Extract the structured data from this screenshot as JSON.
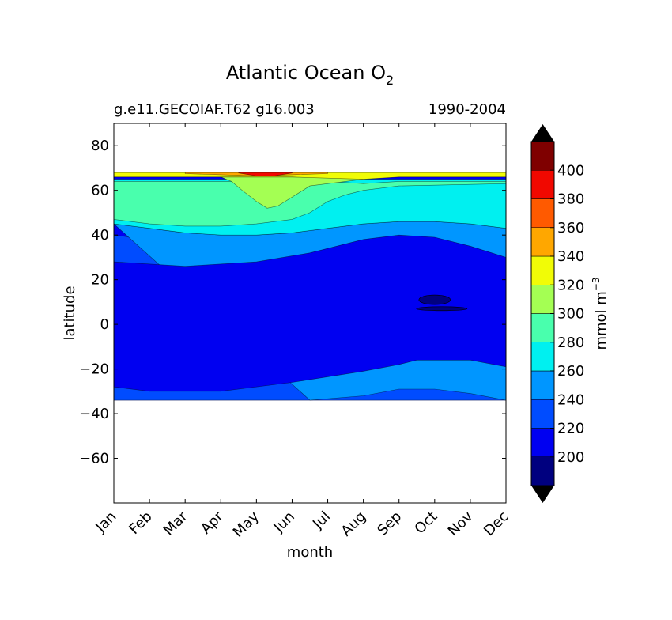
{
  "chart_data": {
    "type": "contourf",
    "title_main": "Atlantic Ocean O",
    "title_sub": "2",
    "subtitle_left": "g.e11.GECOIAF.T62 g16.003",
    "subtitle_right": "1990-2004",
    "xlabel": "month",
    "ylabel": "latitude",
    "x_categories": [
      "Jan",
      "Feb",
      "Mar",
      "Apr",
      "May",
      "Jun",
      "Jul",
      "Aug",
      "Sep",
      "Oct",
      "Nov",
      "Dec"
    ],
    "xlim": [
      0,
      11
    ],
    "ylim": [
      -80,
      90
    ],
    "yticks": [
      80,
      60,
      40,
      20,
      0,
      -20,
      -40,
      -60
    ],
    "ytick_labels": [
      "80",
      "60",
      "40",
      "20",
      "0",
      "−20",
      "−40",
      "−60"
    ],
    "data_lat_range": [
      -34,
      68
    ],
    "colorbar": {
      "label": "mmol m",
      "label_exp": "−3",
      "levels": [
        180,
        200,
        220,
        240,
        260,
        280,
        300,
        320,
        340,
        360,
        380,
        400,
        420
      ],
      "tick_labels": [
        "200",
        "220",
        "240",
        "260",
        "280",
        "300",
        "320",
        "340",
        "360",
        "380",
        "400"
      ],
      "tick_values": [
        200,
        220,
        240,
        260,
        280,
        300,
        320,
        340,
        360,
        380,
        400
      ],
      "colors": [
        "#00007f",
        "#0000f1",
        "#004cff",
        "#0096ff",
        "#00f0f0",
        "#49ffad",
        "#a4ff53",
        "#f1fc06",
        "#ffa700",
        "#ff5a00",
        "#f10800",
        "#7f0000"
      ],
      "extend_low_color": "#000000",
      "extend_high_color": "#000000"
    },
    "contour_bands": [
      {
        "level": 220,
        "color": "#0000f1",
        "top": [
          [
            0,
            28
          ],
          [
            2,
            26
          ],
          [
            4,
            28
          ],
          [
            5.5,
            32
          ],
          [
            7,
            38
          ],
          [
            8,
            40
          ],
          [
            9,
            39
          ],
          [
            10,
            35
          ],
          [
            11,
            30
          ]
        ],
        "bottom": [
          [
            0,
            -28
          ],
          [
            1,
            -30
          ],
          [
            3,
            -30
          ],
          [
            5,
            -26
          ],
          [
            7,
            -21
          ],
          [
            8,
            -18
          ],
          [
            8.5,
            -16
          ],
          [
            10,
            -16
          ],
          [
            11,
            -19
          ]
        ]
      },
      {
        "level": 240,
        "color": "#004cff",
        "top": [
          [
            0,
            40
          ],
          [
            1,
            38
          ],
          [
            2,
            34
          ],
          [
            3,
            33
          ],
          [
            4,
            35
          ],
          [
            5,
            36
          ],
          [
            6,
            39
          ],
          [
            7,
            42
          ],
          [
            8,
            44
          ],
          [
            9,
            44
          ],
          [
            10,
            43
          ],
          [
            11,
            40
          ]
        ],
        "bottom": [
          [
            0,
            -34
          ],
          [
            11,
            -34
          ]
        ]
      },
      {
        "level": 260,
        "color": "#0096ff",
        "top": [
          [
            0,
            45
          ],
          [
            1,
            43
          ],
          [
            2,
            41
          ],
          [
            3,
            40
          ],
          [
            4,
            40
          ],
          [
            5,
            41
          ],
          [
            6,
            43
          ],
          [
            7,
            45
          ],
          [
            8,
            46
          ],
          [
            9,
            46
          ],
          [
            10,
            45
          ],
          [
            11,
            43
          ]
        ],
        "bottom": [
          [
            5.5,
            -34
          ],
          [
            7,
            -32
          ],
          [
            8,
            -29
          ],
          [
            9,
            -29
          ],
          [
            10,
            -31
          ],
          [
            11,
            -34
          ]
        ]
      },
      {
        "level": 280,
        "color": "#00f0f0",
        "top": [
          [
            0,
            65
          ],
          [
            11,
            65
          ]
        ],
        "bottom": [
          [
            0,
            45
          ],
          [
            1,
            43
          ],
          [
            2,
            41
          ],
          [
            3,
            40
          ],
          [
            4,
            40
          ],
          [
            5,
            41
          ],
          [
            6,
            43
          ],
          [
            7,
            45
          ],
          [
            8,
            46
          ],
          [
            9,
            46
          ],
          [
            10,
            45
          ],
          [
            11,
            43
          ]
        ]
      },
      {
        "level": 300,
        "color": "#49ffad",
        "top": [
          [
            0,
            64
          ],
          [
            3,
            64
          ],
          [
            4,
            64
          ],
          [
            5,
            64
          ],
          [
            6,
            64
          ],
          [
            7,
            63
          ],
          [
            8,
            64
          ],
          [
            9,
            64
          ],
          [
            10,
            64
          ],
          [
            11,
            64
          ]
        ],
        "bottom": [
          [
            0,
            47
          ],
          [
            1,
            45
          ],
          [
            2,
            44
          ],
          [
            3,
            44
          ],
          [
            4,
            45
          ],
          [
            5,
            47
          ],
          [
            5.5,
            50
          ],
          [
            6,
            55
          ],
          [
            6.5,
            58
          ],
          [
            7,
            60
          ],
          [
            8,
            62
          ],
          [
            11,
            63
          ]
        ]
      },
      {
        "level": 320,
        "color": "#a4ff53",
        "top": [
          [
            3,
            66
          ],
          [
            5,
            66
          ],
          [
            6,
            66
          ],
          [
            7,
            65
          ]
        ],
        "bottom": [
          [
            3.3,
            64
          ],
          [
            3.6,
            60
          ],
          [
            4,
            55
          ],
          [
            4.3,
            52
          ],
          [
            4.6,
            53
          ],
          [
            5,
            57
          ],
          [
            5.5,
            62
          ],
          [
            6.5,
            64
          ],
          [
            7,
            65
          ]
        ]
      },
      {
        "level": 340,
        "color": "#f1fc06",
        "top": [
          [
            0,
            68
          ],
          [
            11,
            68
          ]
        ],
        "bottom": [
          [
            0,
            66
          ],
          [
            2,
            66
          ],
          [
            4,
            66
          ],
          [
            5,
            66
          ],
          [
            7,
            65
          ],
          [
            8,
            66
          ],
          [
            11,
            66
          ]
        ]
      },
      {
        "level": 360,
        "color": "#ffa700",
        "top": [
          [
            2,
            68
          ],
          [
            6,
            68
          ]
        ],
        "bottom": [
          [
            2,
            67.5
          ],
          [
            3,
            67
          ],
          [
            4,
            66.5
          ],
          [
            5,
            67
          ],
          [
            6,
            67.5
          ]
        ]
      },
      {
        "level": 380,
        "color": "#f10800",
        "top": [
          [
            3.5,
            68
          ],
          [
            5,
            68
          ]
        ],
        "bottom": [
          [
            3.5,
            67.8
          ],
          [
            4,
            66.5
          ],
          [
            4.5,
            66.5
          ],
          [
            5,
            67.8
          ]
        ]
      }
    ]
  }
}
